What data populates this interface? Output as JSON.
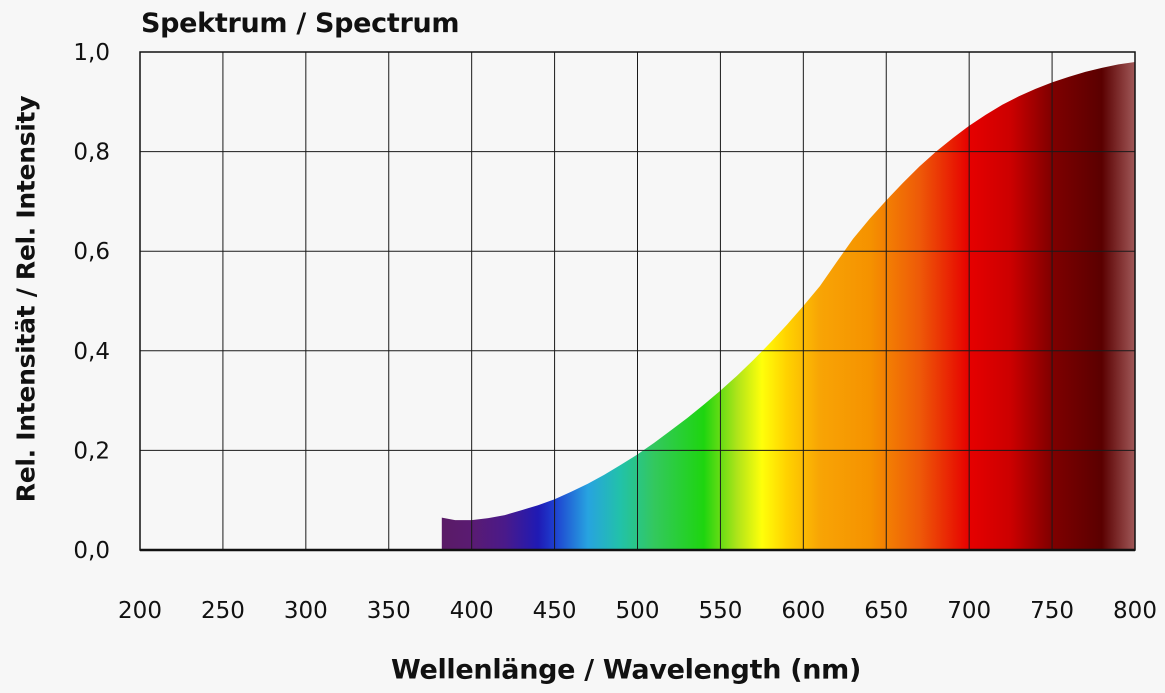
{
  "chart_data": {
    "type": "area",
    "title": "Spektrum / Spectrum",
    "xlabel": "Wellenlänge / Wavelength (nm)",
    "ylabel": "Rel. Intensität / Rel. Intensity",
    "xlim": [
      200,
      800
    ],
    "ylim": [
      0,
      1.0
    ],
    "x_ticks": [
      200,
      250,
      300,
      350,
      400,
      450,
      500,
      550,
      600,
      650,
      700,
      750,
      800
    ],
    "x_tick_labels": [
      "200",
      "250",
      "300",
      "350",
      "400",
      "450",
      "500",
      "550",
      "600",
      "650",
      "700",
      "750",
      "800"
    ],
    "y_ticks": [
      0,
      0.2,
      0.4,
      0.6,
      0.8,
      1.0
    ],
    "y_tick_labels": [
      "0,0",
      "0,2",
      "0,4",
      "0,6",
      "0,8",
      "1,0"
    ],
    "grid": true,
    "fill": "visible-spectrum gradient",
    "series": [
      {
        "x": [
          382,
          390,
          400,
          410,
          420,
          430,
          440,
          450,
          460,
          470,
          480,
          490,
          500,
          510,
          520,
          530,
          540,
          550,
          560,
          570,
          580,
          590,
          600,
          610,
          620,
          630,
          640,
          650,
          660,
          670,
          680,
          690,
          700,
          710,
          720,
          730,
          740,
          750,
          760,
          770,
          780,
          790,
          800
        ],
        "y": [
          0.065,
          0.06,
          0.06,
          0.064,
          0.07,
          0.08,
          0.09,
          0.102,
          0.117,
          0.133,
          0.151,
          0.171,
          0.192,
          0.215,
          0.24,
          0.265,
          0.292,
          0.32,
          0.35,
          0.382,
          0.416,
          0.452,
          0.49,
          0.53,
          0.578,
          0.625,
          0.665,
          0.702,
          0.737,
          0.77,
          0.8,
          0.827,
          0.852,
          0.874,
          0.894,
          0.911,
          0.926,
          0.939,
          0.95,
          0.96,
          0.968,
          0.975,
          0.98
        ]
      }
    ],
    "gradient_stops": [
      {
        "nm": 382,
        "color": "#5a1b66"
      },
      {
        "nm": 400,
        "color": "#5a1b72"
      },
      {
        "nm": 420,
        "color": "#4a1a8a"
      },
      {
        "nm": 440,
        "color": "#1f1ab4"
      },
      {
        "nm": 450,
        "color": "#1e3fd0"
      },
      {
        "nm": 470,
        "color": "#27a3e0"
      },
      {
        "nm": 490,
        "color": "#22c2a8"
      },
      {
        "nm": 510,
        "color": "#33c85e"
      },
      {
        "nm": 540,
        "color": "#1ed50f"
      },
      {
        "nm": 560,
        "color": "#aee41a"
      },
      {
        "nm": 575,
        "color": "#ffff0a"
      },
      {
        "nm": 590,
        "color": "#ffd200"
      },
      {
        "nm": 610,
        "color": "#f8a405"
      },
      {
        "nm": 640,
        "color": "#f59200"
      },
      {
        "nm": 670,
        "color": "#ee5a08"
      },
      {
        "nm": 700,
        "color": "#e60000"
      },
      {
        "nm": 725,
        "color": "#cc0000"
      },
      {
        "nm": 750,
        "color": "#7f0000"
      },
      {
        "nm": 780,
        "color": "#5a0000"
      },
      {
        "nm": 800,
        "color": "#a05858"
      }
    ]
  }
}
